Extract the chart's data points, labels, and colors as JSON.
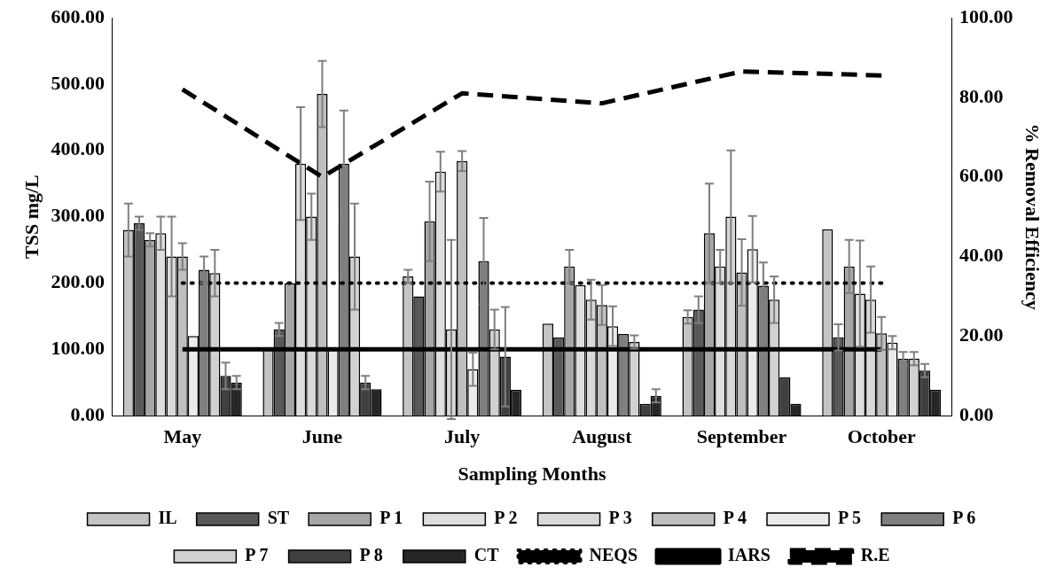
{
  "chart_data": {
    "type": "bar",
    "xlabel": "Sampling Months",
    "ylabel": "TSS mg/L",
    "y2label": "% Removal Efficiency",
    "categories": [
      "May",
      "June",
      "July",
      "August",
      "September",
      "October"
    ],
    "ylim": [
      0,
      600
    ],
    "yticks": [
      {
        "value": 0,
        "label": "0.00"
      },
      {
        "value": 100,
        "label": "100.00"
      },
      {
        "value": 200,
        "label": "200.00"
      },
      {
        "value": 300,
        "label": "300.00"
      },
      {
        "value": 400,
        "label": "400.00"
      },
      {
        "value": 500,
        "label": "500.00"
      },
      {
        "value": 600,
        "label": "600.00"
      }
    ],
    "y2lim": [
      0,
      100
    ],
    "y2ticks": [
      {
        "value": 0,
        "label": "0.00"
      },
      {
        "value": 20,
        "label": "20.00"
      },
      {
        "value": 40,
        "label": "40.00"
      },
      {
        "value": 60,
        "label": "60.00"
      },
      {
        "value": 80,
        "label": "80.00"
      },
      {
        "value": 100,
        "label": "100.00"
      }
    ],
    "legend": "bottom",
    "grid": false,
    "series": [
      {
        "name": "IL",
        "color": "#c4c4c4",
        "values": [
          280,
          100,
          210,
          139,
          149,
          281
        ],
        "errors": [
          40,
          null,
          10,
          null,
          10,
          null
        ]
      },
      {
        "name": "ST",
        "color": "#595959",
        "values": [
          290,
          130,
          180,
          118,
          160,
          118
        ],
        "errors": [
          10,
          10,
          null,
          null,
          20,
          20
        ]
      },
      {
        "name": "P 1",
        "color": "#a6a6a6",
        "values": [
          265,
          200,
          293,
          225,
          275,
          225
        ],
        "errors": [
          10,
          null,
          60,
          25,
          75,
          40
        ]
      },
      {
        "name": "P 2",
        "color": "#dedede",
        "values": [
          275,
          380,
          368,
          197,
          225,
          184
        ],
        "errors": [
          25,
          85,
          30,
          null,
          25,
          80
        ]
      },
      {
        "name": "P 3",
        "color": "#d9d9d9",
        "values": [
          240,
          300,
          130,
          175,
          300,
          175
        ],
        "errors": [
          60,
          35,
          135,
          30,
          100,
          50
        ]
      },
      {
        "name": "P 4",
        "color": "#bfbfbf",
        "values": [
          240,
          485,
          384,
          167,
          216,
          124
        ],
        "errors": [
          20,
          50,
          15,
          30,
          50,
          25
        ]
      },
      {
        "name": "P 5",
        "color": "#ebebeb",
        "values": [
          120,
          100,
          70,
          135,
          251,
          110
        ],
        "errors": [
          null,
          null,
          25,
          30,
          50,
          10
        ]
      },
      {
        "name": "P 6",
        "color": "#7f7f7f",
        "values": [
          220,
          380,
          233,
          123,
          196,
          86
        ],
        "errors": [
          20,
          80,
          65,
          null,
          35,
          10
        ]
      },
      {
        "name": "P 7",
        "color": "#d1d1d1",
        "values": [
          215,
          240,
          130,
          111,
          175,
          86
        ],
        "errors": [
          35,
          80,
          30,
          10,
          35,
          10
        ]
      },
      {
        "name": "P 8",
        "color": "#404040",
        "values": [
          60,
          50,
          89,
          18,
          58,
          68
        ],
        "errors": [
          20,
          10,
          75,
          null,
          null,
          10
        ]
      },
      {
        "name": "CT",
        "color": "#262626",
        "values": [
          50,
          40,
          39,
          30,
          18,
          39
        ],
        "errors": [
          10,
          null,
          null,
          10,
          null,
          null
        ]
      },
      {
        "name": "NEQS",
        "type": "line",
        "color": "#000000",
        "line_style": "dotted",
        "values": [
          200,
          200,
          200,
          200,
          200,
          200
        ]
      },
      {
        "name": "IARS",
        "type": "line",
        "color": "#000000",
        "line_style": "solid",
        "values": [
          100,
          100,
          100,
          100,
          100,
          100
        ]
      },
      {
        "name": "R.E",
        "type": "line",
        "axis": "y2",
        "color": "#000000",
        "line_style": "dashed",
        "values": [
          82,
          60,
          81,
          78.5,
          86.5,
          85.5
        ]
      }
    ]
  }
}
